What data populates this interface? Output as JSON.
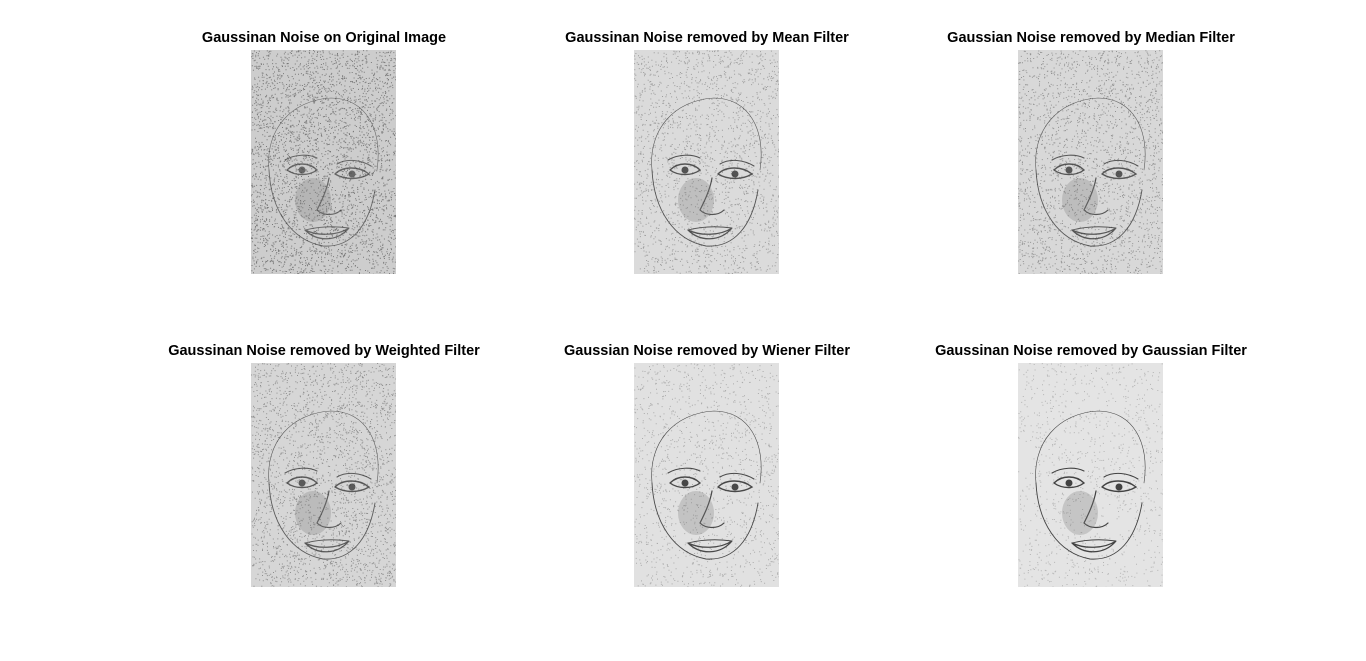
{
  "figure": {
    "panels": [
      {
        "title": "Gaussinan Noise on Original Image",
        "noise_level": 0.9
      },
      {
        "title": "Gaussinan Noise removed by Mean Filter",
        "noise_level": 0.45
      },
      {
        "title": "Gaussian Noise removed by Median Filter",
        "noise_level": 0.55
      },
      {
        "title": "Gaussinan Noise removed by Weighted Filter",
        "noise_level": 0.6
      },
      {
        "title": "Gaussian Noise removed by Wiener Filter",
        "noise_level": 0.25
      },
      {
        "title": "Gaussinan Noise removed by Gaussian Filter",
        "noise_level": 0.15
      }
    ],
    "colors": {
      "background": "#ffffff",
      "paper": "#e4e4e4",
      "ink": "#3a3a3a"
    }
  }
}
